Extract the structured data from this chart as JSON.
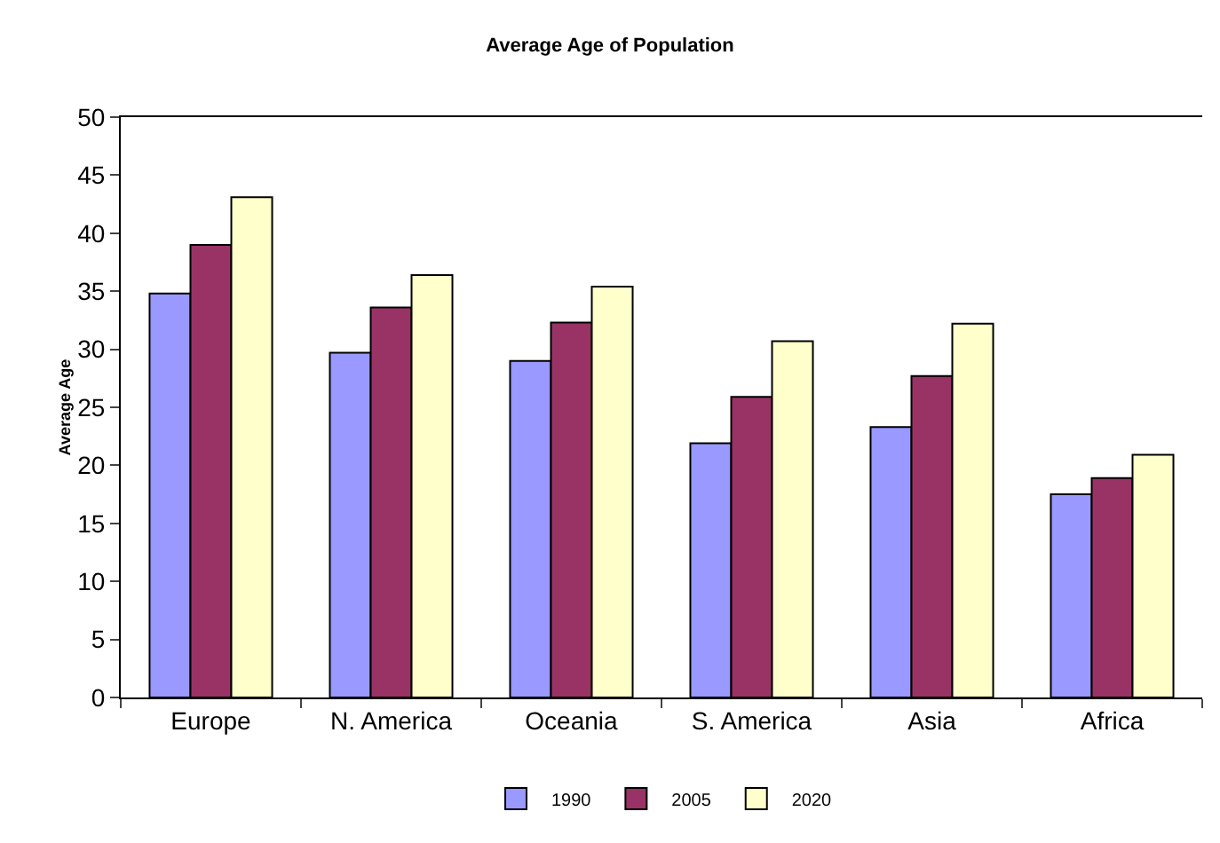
{
  "chart_data": {
    "type": "bar",
    "title": "Average Age of Population",
    "ylabel": "Average Age",
    "categories": [
      "Europe",
      "N. America",
      "Oceania",
      "S. America",
      "Asia",
      "Africa"
    ],
    "series": [
      {
        "name": "1990",
        "color": "#9999ff",
        "values": [
          34.8,
          29.7,
          29.0,
          21.9,
          23.3,
          17.5
        ]
      },
      {
        "name": "2005",
        "color": "#993366",
        "values": [
          39.0,
          33.6,
          32.3,
          25.9,
          27.7,
          18.9
        ]
      },
      {
        "name": "2020",
        "color": "#ffffcc",
        "values": [
          43.1,
          36.4,
          35.4,
          30.7,
          32.2,
          20.9
        ]
      }
    ],
    "ylim": [
      0,
      50
    ],
    "yticks": [
      0,
      5,
      10,
      15,
      20,
      25,
      30,
      35,
      40,
      45,
      50
    ],
    "grid": false,
    "legend": "bottom"
  }
}
